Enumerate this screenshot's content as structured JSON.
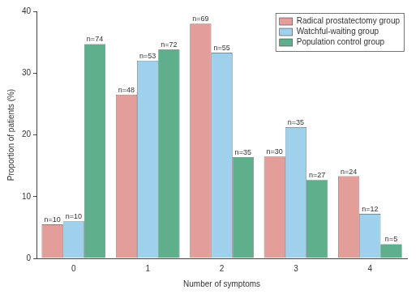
{
  "chart_data": {
    "type": "bar",
    "x_label": "Number of symptoms",
    "y_label": "Proportion of patients (%)",
    "categories": [
      "0",
      "1",
      "2",
      "3",
      "4"
    ],
    "series": [
      {
        "name": "Radical prostatectomy group",
        "color": "#e49e99",
        "values": [
          5.5,
          26.5,
          38.0,
          16.5,
          13.3
        ],
        "bar_labels": [
          "n=10",
          "n=48",
          "n=69",
          "n=30",
          "n=24"
        ]
      },
      {
        "name": "Watchful-waiting group",
        "color": "#9fd1ec",
        "values": [
          6.0,
          32.0,
          33.3,
          21.2,
          7.2
        ],
        "bar_labels": [
          "n=10",
          "n=53",
          "n=55",
          "n=35",
          "n=12"
        ]
      },
      {
        "name": "Population control group",
        "color": "#5fae8c",
        "values": [
          34.7,
          33.8,
          16.4,
          12.7,
          2.3
        ],
        "bar_labels": [
          "n=74",
          "n=72",
          "n=35",
          "n=27",
          "n=5"
        ]
      }
    ],
    "ylim": [
      0,
      40
    ],
    "yticks": [
      0,
      10,
      20,
      30,
      40
    ],
    "grid": false,
    "legend": "upper right"
  }
}
